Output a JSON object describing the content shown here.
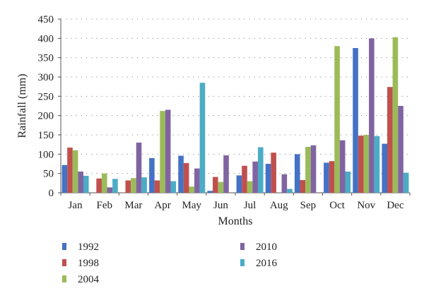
{
  "chart_data": {
    "type": "bar",
    "title": "",
    "xlabel": "Months",
    "ylabel": "Rainfall (mm)",
    "ylim": [
      0,
      450
    ],
    "yticks": [
      0,
      50,
      100,
      150,
      200,
      250,
      300,
      350,
      400,
      450
    ],
    "grid": "dotted horizontal",
    "legend_placement": "bottom",
    "categories": [
      "Jan",
      "Feb",
      "Mar",
      "Apr",
      "May",
      "Jun",
      "Jul",
      "Aug",
      "Sep",
      "Oct",
      "Nov",
      "Dec"
    ],
    "series": [
      {
        "name": "1992",
        "color": "#4472C4",
        "values": [
          72,
          0,
          0,
          90,
          96,
          5,
          45,
          75,
          100,
          78,
          375,
          127
        ]
      },
      {
        "name": "1998",
        "color": "#C0504D",
        "values": [
          117,
          37,
          32,
          32,
          77,
          41,
          70,
          104,
          33,
          82,
          148,
          274
        ]
      },
      {
        "name": "2004",
        "color": "#9BBB59",
        "values": [
          110,
          50,
          38,
          212,
          16,
          28,
          30,
          0,
          119,
          380,
          150,
          403
        ]
      },
      {
        "name": "2010",
        "color": "#8064A2",
        "values": [
          55,
          14,
          130,
          215,
          63,
          97,
          81,
          48,
          123,
          136,
          400,
          225
        ]
      },
      {
        "name": "2016",
        "color": "#4BACC6",
        "values": [
          44,
          36,
          40,
          30,
          285,
          0,
          118,
          10,
          0,
          55,
          147,
          52
        ]
      }
    ]
  }
}
